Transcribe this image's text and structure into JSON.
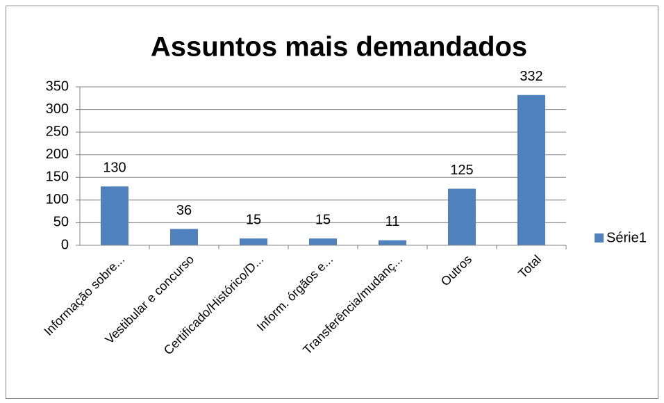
{
  "chart_data": {
    "type": "bar",
    "title": "Assuntos mais demandados",
    "categories": [
      "Informação sobre...",
      "Vestibular e concurso",
      "Certificado/Histórico/D...",
      "Inform. órgãos e...",
      "Transferência/mudanç...",
      "Outros",
      "Total"
    ],
    "series": [
      {
        "name": "Série1",
        "color": "#4f81bd",
        "values": [
          130,
          36,
          15,
          15,
          11,
          125,
          332
        ]
      }
    ],
    "ylim": [
      0,
      350
    ],
    "yticks": [
      0,
      50,
      100,
      150,
      200,
      250,
      300,
      350
    ],
    "grid": true,
    "legend": "right"
  }
}
